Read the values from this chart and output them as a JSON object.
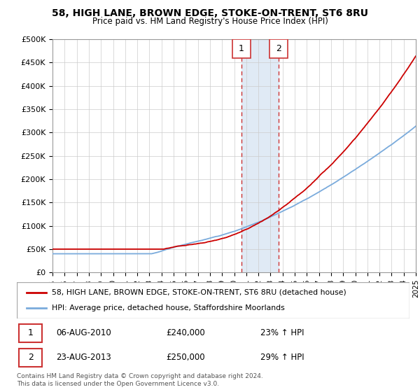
{
  "title": "58, HIGH LANE, BROWN EDGE, STOKE-ON-TRENT, ST6 8RU",
  "subtitle": "Price paid vs. HM Land Registry's House Price Index (HPI)",
  "ylabel_ticks": [
    "£0",
    "£50K",
    "£100K",
    "£150K",
    "£200K",
    "£250K",
    "£300K",
    "£350K",
    "£400K",
    "£450K",
    "£500K"
  ],
  "ytick_values": [
    0,
    50000,
    100000,
    150000,
    200000,
    250000,
    300000,
    350000,
    400000,
    450000,
    500000
  ],
  "xlim": [
    1995,
    2025
  ],
  "ylim": [
    0,
    500000
  ],
  "marker1_x": 2010.6,
  "marker1_y": 240000,
  "marker2_x": 2013.65,
  "marker2_y": 250000,
  "sale1_date": "06-AUG-2010",
  "sale1_price": "£240,000",
  "sale1_hpi": "23% ↑ HPI",
  "sale2_date": "23-AUG-2013",
  "sale2_price": "£250,000",
  "sale2_hpi": "29% ↑ HPI",
  "legend_line1": "58, HIGH LANE, BROWN EDGE, STOKE-ON-TRENT, ST6 8RU (detached house)",
  "legend_line2": "HPI: Average price, detached house, Staffordshire Moorlands",
  "footnote": "Contains HM Land Registry data © Crown copyright and database right 2024.\nThis data is licensed under the Open Government Licence v3.0.",
  "line_color_red": "#cc0000",
  "line_color_blue": "#7aabdc",
  "shaded_region_color": "#e0eaf5",
  "marker_box_color": "#cc3333",
  "background_color": "#ffffff",
  "grid_color": "#cccccc"
}
